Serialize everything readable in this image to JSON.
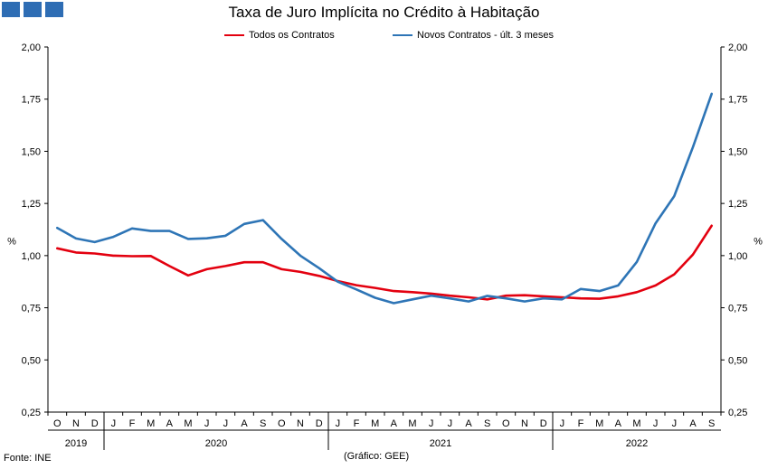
{
  "brand": {
    "squares": 3,
    "color": "#2e6db4"
  },
  "chart_data": {
    "type": "line",
    "title": "Taxa de Juro Implícita no Crédito à Habitação",
    "ylabel_left": "%",
    "ylabel_right": "%",
    "ylim": [
      0.25,
      2.0
    ],
    "yticks": [
      "0,25",
      "0,50",
      "0,75",
      "1,00",
      "1,25",
      "1,50",
      "1,75",
      "2,00"
    ],
    "ytick_values": [
      0.25,
      0.5,
      0.75,
      1.0,
      1.25,
      1.5,
      1.75,
      2.0
    ],
    "grid": false,
    "legend_position": "top",
    "categories": [
      "O",
      "N",
      "D",
      "J",
      "F",
      "M",
      "A",
      "M",
      "J",
      "J",
      "A",
      "S",
      "O",
      "N",
      "D",
      "J",
      "F",
      "M",
      "A",
      "M",
      "J",
      "J",
      "A",
      "S",
      "O",
      "N",
      "D",
      "J",
      "F",
      "M",
      "A",
      "M",
      "J",
      "J",
      "A",
      "S"
    ],
    "years": [
      {
        "label": "2019",
        "start": 0,
        "end": 2
      },
      {
        "label": "2020",
        "start": 3,
        "end": 14
      },
      {
        "label": "2021",
        "start": 15,
        "end": 26
      },
      {
        "label": "2022",
        "start": 27,
        "end": 35
      }
    ],
    "series": [
      {
        "name": "Todos os Contratos",
        "color": "#e3000f",
        "values": [
          1.035,
          1.015,
          1.01,
          1.0,
          0.997,
          0.998,
          0.95,
          0.905,
          0.935,
          0.95,
          0.968,
          0.968,
          0.935,
          0.922,
          0.903,
          0.878,
          0.858,
          0.845,
          0.83,
          0.825,
          0.818,
          0.808,
          0.8,
          0.79,
          0.808,
          0.81,
          0.805,
          0.8,
          0.795,
          0.793,
          0.805,
          0.825,
          0.857,
          0.91,
          1.005,
          1.143
        ]
      },
      {
        "name": "Novos Contratos - últ. 3 meses",
        "color": "#2e75b6",
        "values": [
          1.133,
          1.082,
          1.065,
          1.09,
          1.13,
          1.118,
          1.118,
          1.08,
          1.083,
          1.095,
          1.152,
          1.17,
          1.08,
          1.0,
          0.94,
          0.875,
          0.838,
          0.798,
          0.772,
          0.79,
          0.808,
          0.795,
          0.78,
          0.807,
          0.795,
          0.78,
          0.795,
          0.79,
          0.84,
          0.83,
          0.857,
          0.97,
          1.155,
          1.285,
          1.52,
          1.775
        ]
      }
    ]
  },
  "footer": {
    "source": "Fonte: INE",
    "credit": "(Gráfico: GEE)"
  }
}
